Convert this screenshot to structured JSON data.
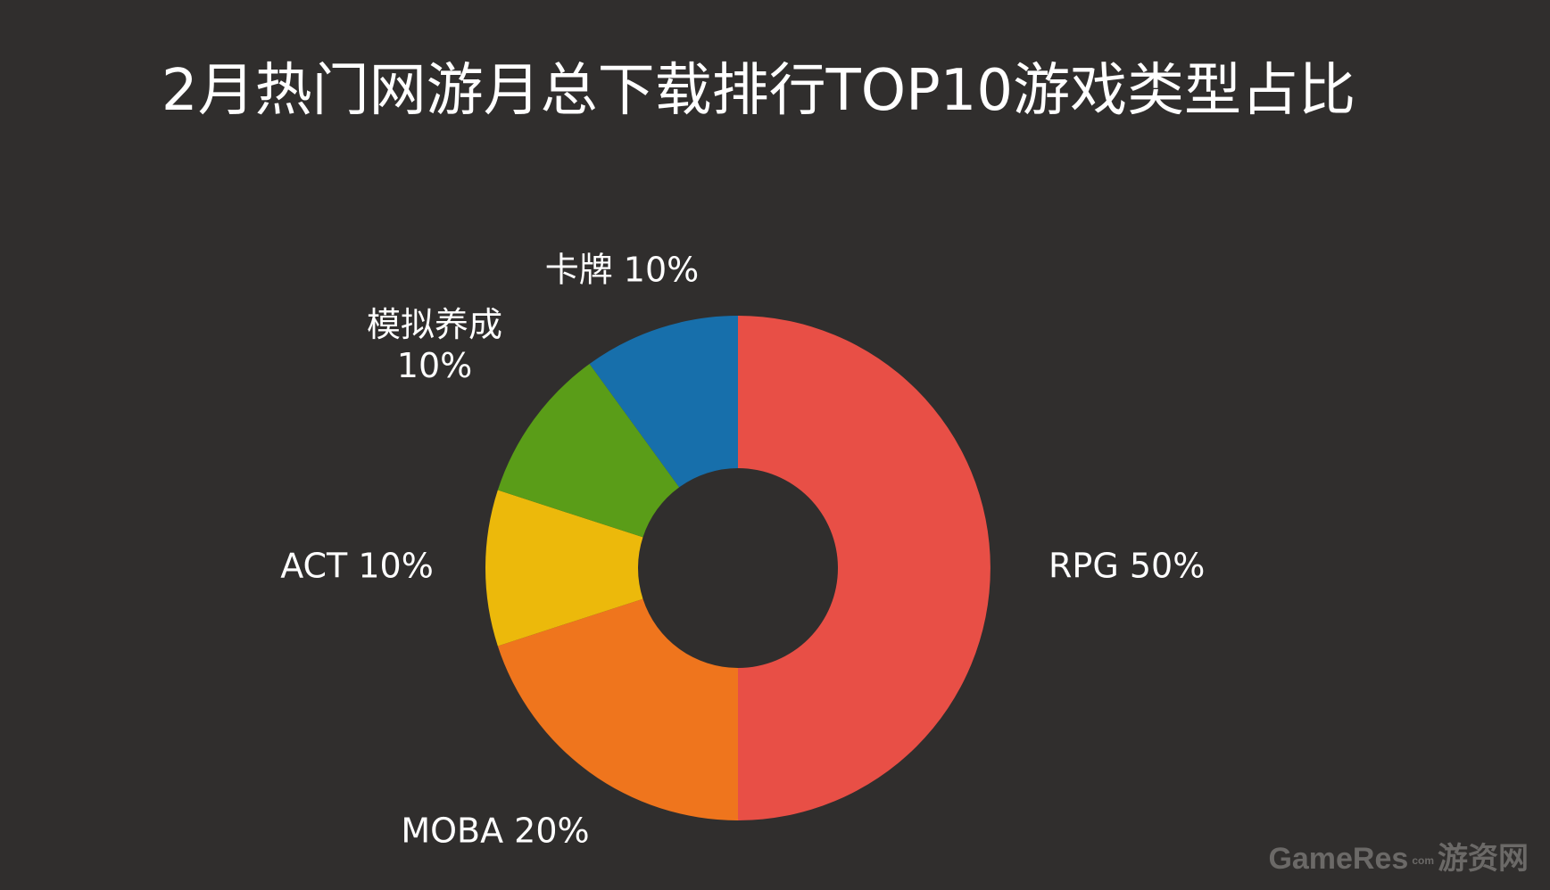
{
  "chart_data": {
    "type": "pie",
    "subtype": "donut",
    "title": "2月热门网游月总下载排行TOP10游戏类型占比",
    "legend": "none",
    "slices": [
      {
        "label": "RPG",
        "value": 50,
        "value_text": "50%",
        "color": "#e84f46"
      },
      {
        "label": "MOBA",
        "value": 20,
        "value_text": "20%",
        "color": "#ef751d"
      },
      {
        "label": "ACT",
        "value": 10,
        "value_text": "10%",
        "color": "#ecb90b"
      },
      {
        "label": "模拟养成",
        "value": 10,
        "value_text": "10%",
        "color": "#5a9d18"
      },
      {
        "label": "卡牌",
        "value": 10,
        "value_text": "10%",
        "color": "#176fab"
      }
    ]
  },
  "watermark": {
    "brand": "GameRes",
    "domain": "com",
    "site": "游资网"
  },
  "colors": {
    "background": "#302e2d",
    "text": "#ffffff",
    "watermark": "#6b6967"
  }
}
